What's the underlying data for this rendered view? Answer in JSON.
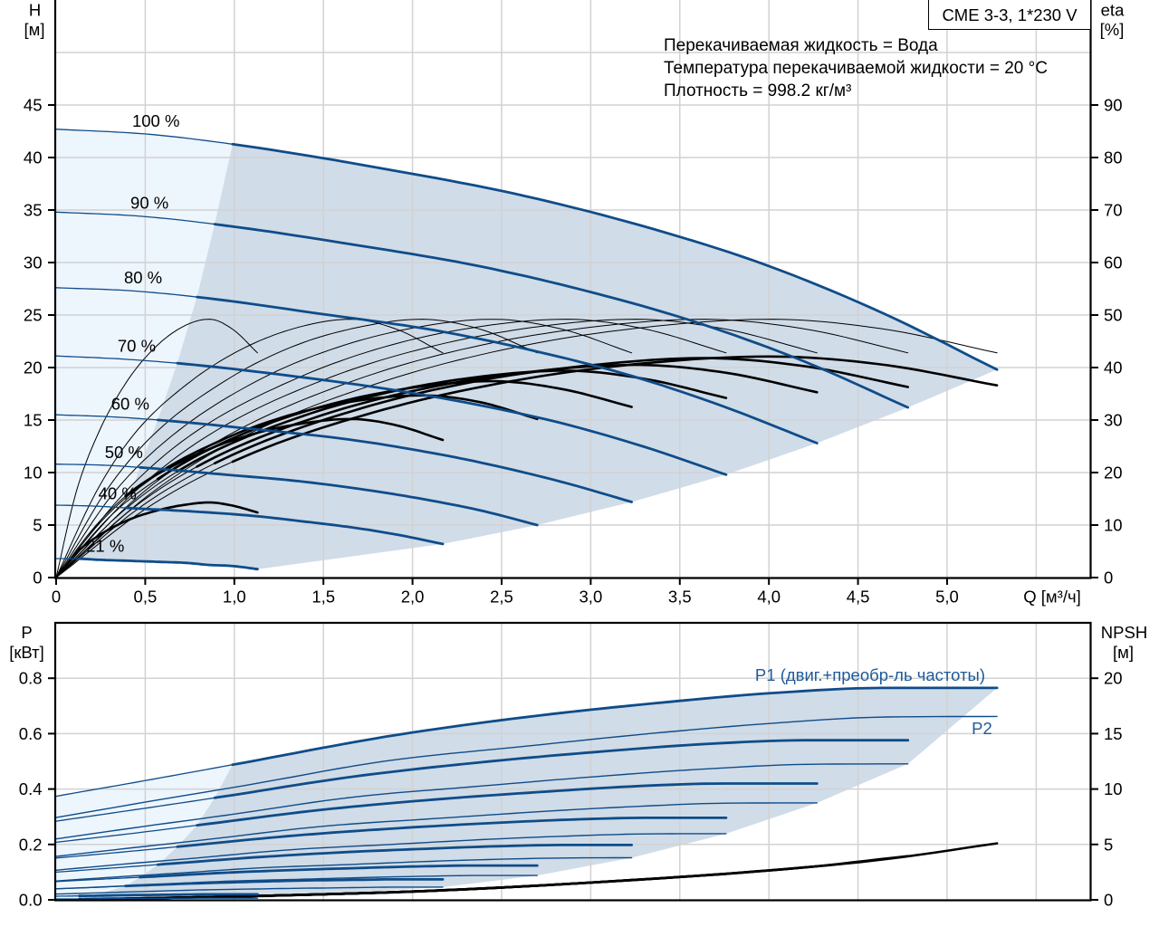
{
  "legend_box": "CME 3-3, 1*230 V",
  "info_lines": [
    "Перекачиваемая жидкость = Вода",
    "Температура перекачиваемой жидкости = 20 °C",
    "Плотность = 998.2 кг/м³"
  ],
  "colors": {
    "curve_blue": "#0f4c89",
    "annotation_blue": "#1f5a99",
    "eta_black": "#000000",
    "operating_range_fill": "#d0dce8",
    "extended_range_fill": "#edf5fd",
    "grid": "#d2d2d2"
  },
  "chart_data": [
    {
      "type": "line",
      "xlabel": "Q [м³/ч]",
      "ylabel": "H",
      "ylabel_unit": "[м]",
      "y2label": "eta",
      "y2label_unit": "[%]",
      "xlim": [
        0,
        5.8
      ],
      "ylim": [
        0,
        55
      ],
      "y2lim": [
        0,
        110
      ],
      "grid": true,
      "x_grid_step": 0.5,
      "y_grid_step": 5,
      "xticks": [
        {
          "value": 0,
          "label": "0"
        },
        {
          "value": 0.5,
          "label": "0,5"
        },
        {
          "value": 1,
          "label": "1,0"
        },
        {
          "value": 1.5,
          "label": "1,5"
        },
        {
          "value": 2,
          "label": "2,0"
        },
        {
          "value": 2.5,
          "label": "2,5"
        },
        {
          "value": 3,
          "label": "3,0"
        },
        {
          "value": 3.5,
          "label": "3,5"
        },
        {
          "value": 4,
          "label": "4,0"
        },
        {
          "value": 4.5,
          "label": "4,5"
        },
        {
          "value": 5,
          "label": "5,0"
        }
      ],
      "yticks": [
        {
          "value": 0,
          "label": "0"
        },
        {
          "value": 5,
          "label": "5"
        },
        {
          "value": 10,
          "label": "10"
        },
        {
          "value": 15,
          "label": "15"
        },
        {
          "value": 20,
          "label": "20"
        },
        {
          "value": 25,
          "label": "25"
        },
        {
          "value": 30,
          "label": "30"
        },
        {
          "value": 35,
          "label": "35"
        },
        {
          "value": 40,
          "label": "40"
        },
        {
          "value": 45,
          "label": "45"
        }
      ],
      "y2ticks": [
        {
          "value": 0,
          "label": "0"
        },
        {
          "value": 10,
          "label": "10"
        },
        {
          "value": 20,
          "label": "20"
        },
        {
          "value": 30,
          "label": "30"
        },
        {
          "value": 40,
          "label": "40"
        },
        {
          "value": 50,
          "label": "50"
        },
        {
          "value": 60,
          "label": "60"
        },
        {
          "value": 70,
          "label": "70"
        },
        {
          "value": 80,
          "label": "80"
        },
        {
          "value": 90,
          "label": "90"
        }
      ],
      "series": [
        {
          "speed_label": "100 %",
          "q_min": 0.99,
          "q": [
            0,
            0.53,
            1.06,
            1.85,
            2.64,
            3.43,
            4.01,
            4.65,
            5.28
          ],
          "h": [
            42.7,
            42.2,
            41.1,
            38.9,
            36.3,
            32.8,
            29.6,
            25.1,
            19.8
          ],
          "eta_pump": [
            0,
            16,
            27,
            37.5,
            44.3,
            48.1,
            49.2,
            47.3,
            42.8
          ],
          "eta_total": [
            0,
            13.7,
            23.1,
            32.1,
            37.9,
            41.2,
            42.1,
            40.5,
            36.6
          ]
        },
        {
          "speed_label": "90 %",
          "q_min": 0.89,
          "q": [
            0,
            0.48,
            0.96,
            1.67,
            2.39,
            3.11,
            3.63,
            4.21,
            4.78
          ],
          "h": [
            34.8,
            34.4,
            33.5,
            31.7,
            29.6,
            26.7,
            24.1,
            20.5,
            16.2
          ],
          "eta_pump": [
            0,
            16,
            27,
            37.5,
            44.3,
            48.1,
            49.2,
            47.3,
            42.8
          ],
          "eta_total": [
            0,
            13.6,
            22.9,
            31.8,
            37.6,
            40.8,
            41.8,
            40.2,
            36.3
          ]
        },
        {
          "speed_label": "80 %",
          "q_min": 0.79,
          "q": [
            0,
            0.43,
            0.85,
            1.49,
            2.14,
            2.78,
            3.25,
            3.76,
            4.27
          ],
          "h": [
            27.6,
            27.3,
            26.6,
            25.1,
            23.5,
            21.2,
            19.1,
            16.2,
            12.8
          ],
          "eta_pump": [
            0,
            16,
            27,
            37.5,
            44.3,
            48.1,
            49.2,
            47.3,
            42.8
          ],
          "eta_total": [
            0,
            13.2,
            22.2,
            30.9,
            36.5,
            39.6,
            40.5,
            39.0,
            35.3
          ]
        },
        {
          "speed_label": "70 %",
          "q_min": 0.68,
          "q": [
            0,
            0.38,
            0.75,
            1.32,
            1.88,
            2.44,
            2.86,
            3.31,
            3.76
          ],
          "h": [
            21.1,
            20.8,
            20.3,
            19.2,
            17.9,
            16.2,
            14.6,
            12.4,
            9.8
          ],
          "eta_pump": [
            0,
            16,
            27,
            37.5,
            44.3,
            48.1,
            49.2,
            47.3,
            42.8
          ],
          "eta_total": [
            0,
            12.8,
            21.6,
            30.0,
            35.4,
            38.5,
            39.4,
            37.8,
            34.2
          ]
        },
        {
          "speed_label": "60 %",
          "q_min": 0.57,
          "q": [
            0,
            0.32,
            0.65,
            1.13,
            1.62,
            2.1,
            2.45,
            2.84,
            3.23
          ],
          "h": [
            15.5,
            15.3,
            14.9,
            14.1,
            13.2,
            11.9,
            10.7,
            9.1,
            7.2
          ],
          "eta_pump": [
            0,
            16,
            27,
            37.5,
            44.3,
            48.1,
            49.2,
            47.3,
            42.8
          ],
          "eta_total": [
            0,
            12.2,
            20.5,
            28.5,
            33.7,
            36.6,
            37.4,
            35.9,
            32.5
          ]
        },
        {
          "speed_label": "50 %",
          "q_min": 0.47,
          "q": [
            0,
            0.27,
            0.54,
            0.95,
            1.35,
            1.76,
            2.05,
            2.38,
            2.7
          ],
          "h": [
            10.8,
            10.7,
            10.4,
            9.8,
            9.2,
            8.3,
            7.5,
            6.4,
            5.0
          ],
          "eta_pump": [
            0,
            16,
            27,
            37.5,
            44.3,
            48.1,
            49.2,
            47.3,
            42.8
          ],
          "eta_total": [
            0,
            11.3,
            19.1,
            26.5,
            31.3,
            34.0,
            34.7,
            33.4,
            30.2
          ]
        },
        {
          "speed_label": "40 %",
          "q_min": 0.39,
          "q": [
            0,
            0.22,
            0.43,
            0.76,
            1.09,
            1.41,
            1.65,
            1.91,
            2.17
          ],
          "h": [
            6.9,
            6.8,
            6.6,
            6.3,
            5.9,
            5.3,
            4.8,
            4.1,
            3.2
          ],
          "eta_pump": [
            0,
            16,
            27,
            37.5,
            44.3,
            48.1,
            49.2,
            47.3,
            42.8
          ],
          "eta_total": [
            0,
            9.8,
            16.6,
            23.0,
            27.2,
            29.5,
            30.2,
            29.0,
            26.2
          ]
        },
        {
          "speed_label": "21 %",
          "q_min": 0.13,
          "q": [
            0,
            0.11,
            0.23,
            0.4,
            0.57,
            0.73,
            0.86,
            0.99,
            1.13
          ],
          "h": [
            1.8,
            1.8,
            1.7,
            1.6,
            1.5,
            1.4,
            1.2,
            1.1,
            0.8
          ],
          "eta_pump": [
            0,
            16,
            27,
            37.5,
            44.3,
            48.1,
            49.2,
            47.3,
            42.8
          ],
          "eta_total": [
            0,
            4.6,
            7.8,
            10.9,
            12.8,
            13.9,
            14.3,
            13.7,
            12.4
          ]
        }
      ]
    },
    {
      "type": "line",
      "ylabel": "P",
      "ylabel_unit": "[кВт]",
      "y2label": "NPSH",
      "y2label_unit": "[м]",
      "xlim": [
        0,
        5.8
      ],
      "ylim": [
        0,
        1.0
      ],
      "y2lim": [
        0,
        25
      ],
      "grid": true,
      "x_grid_step": 0.5,
      "y_grid_step": 0.2,
      "yticks": [
        {
          "value": 0,
          "label": "0.0"
        },
        {
          "value": 0.2,
          "label": "0.2"
        },
        {
          "value": 0.4,
          "label": "0.4"
        },
        {
          "value": 0.6,
          "label": "0.6"
        },
        {
          "value": 0.8,
          "label": "0.8"
        }
      ],
      "y2ticks": [
        {
          "value": 0,
          "label": "0"
        },
        {
          "value": 5,
          "label": "5"
        },
        {
          "value": 10,
          "label": "10"
        },
        {
          "value": 15,
          "label": "15"
        },
        {
          "value": 20,
          "label": "20"
        }
      ],
      "annotations": {
        "p1": "P1 (двиг.+преобр-ль частоты)",
        "p2": "P2"
      },
      "series": [
        {
          "q_min": 0.99,
          "q": [
            0,
            0.53,
            1.06,
            1.85,
            2.64,
            3.43,
            4.01,
            4.65,
            5.28
          ],
          "p1": [
            0.374,
            0.434,
            0.496,
            0.589,
            0.66,
            0.714,
            0.746,
            0.765,
            0.765
          ],
          "p2": [
            0.297,
            0.356,
            0.413,
            0.501,
            0.555,
            0.606,
            0.637,
            0.66,
            0.662
          ],
          "npsh": [
            0.05,
            0.16,
            0.32,
            0.67,
            1.23,
            1.98,
            2.66,
            3.66,
            5.1
          ]
        },
        {
          "q_min": 0.89,
          "q": [
            0,
            0.48,
            0.96,
            1.67,
            2.39,
            3.11,
            3.63,
            4.21,
            4.78
          ],
          "p1": [
            0.284,
            0.329,
            0.375,
            0.445,
            0.497,
            0.538,
            0.562,
            0.576,
            0.576
          ],
          "p2": [
            0.22,
            0.264,
            0.306,
            0.371,
            0.411,
            0.449,
            0.472,
            0.489,
            0.491
          ],
          "npsh": [
            0.05,
            0.15,
            0.29,
            0.58,
            1.02,
            1.67,
            2.21,
            2.94,
            3.95
          ]
        },
        {
          "q_min": 0.79,
          "q": [
            0,
            0.43,
            0.85,
            1.49,
            2.14,
            2.78,
            3.25,
            3.76,
            4.27
          ],
          "p1": [
            0.208,
            0.24,
            0.274,
            0.325,
            0.363,
            0.392,
            0.41,
            0.42,
            0.42
          ],
          "p2": [
            0.157,
            0.188,
            0.218,
            0.265,
            0.294,
            0.321,
            0.337,
            0.349,
            0.35
          ],
          "npsh": [
            0.05,
            0.13,
            0.25,
            0.5,
            0.84,
            1.36,
            1.81,
            2.36,
            3.02
          ]
        },
        {
          "q_min": 0.68,
          "q": [
            0,
            0.38,
            0.75,
            1.32,
            1.88,
            2.44,
            2.86,
            3.31,
            3.76
          ],
          "p1": [
            0.151,
            0.173,
            0.196,
            0.231,
            0.257,
            0.277,
            0.289,
            0.296,
            0.296
          ],
          "p2": [
            0.107,
            0.129,
            0.149,
            0.181,
            0.2,
            0.219,
            0.23,
            0.238,
            0.239
          ],
          "npsh": [
            0.05,
            0.12,
            0.22,
            0.43,
            0.68,
            1.06,
            1.43,
            1.86,
            2.34
          ]
        },
        {
          "q_min": 0.57,
          "q": [
            0,
            0.32,
            0.65,
            1.13,
            1.62,
            2.1,
            2.45,
            2.84,
            3.23
          ],
          "p1": [
            0.1,
            0.115,
            0.131,
            0.154,
            0.172,
            0.185,
            0.193,
            0.198,
            0.198
          ],
          "p2": [
            0.068,
            0.082,
            0.095,
            0.115,
            0.127,
            0.139,
            0.146,
            0.151,
            0.152
          ],
          "npsh": [
            0.05,
            0.11,
            0.19,
            0.35,
            0.56,
            0.81,
            1.06,
            1.41,
            1.78
          ]
        },
        {
          "q_min": 0.47,
          "q": [
            0,
            0.27,
            0.54,
            0.95,
            1.35,
            1.76,
            2.05,
            2.38,
            2.7
          ],
          "p1": [
            0.066,
            0.075,
            0.084,
            0.098,
            0.108,
            0.116,
            0.121,
            0.124,
            0.124
          ],
          "p2": [
            0.04,
            0.047,
            0.055,
            0.067,
            0.074,
            0.081,
            0.085,
            0.088,
            0.088
          ],
          "npsh": [
            0.05,
            0.1,
            0.16,
            0.28,
            0.44,
            0.62,
            0.78,
            1.01,
            1.28
          ]
        },
        {
          "q_min": 0.39,
          "q": [
            0,
            0.22,
            0.43,
            0.76,
            1.09,
            1.41,
            1.65,
            1.91,
            2.17
          ],
          "p1": [
            0.04,
            0.045,
            0.051,
            0.059,
            0.065,
            0.07,
            0.072,
            0.074,
            0.074
          ],
          "p2": [
            0.021,
            0.025,
            0.029,
            0.035,
            0.039,
            0.042,
            0.044,
            0.046,
            0.046
          ],
          "npsh": [
            0.05,
            0.09,
            0.13,
            0.22,
            0.34,
            0.46,
            0.57,
            0.68,
            0.85
          ]
        },
        {
          "q_min": 0.13,
          "q": [
            0,
            0.11,
            0.23,
            0.4,
            0.57,
            0.73,
            0.86,
            0.99,
            1.13
          ],
          "p1": [
            0.013,
            0.014,
            0.015,
            0.017,
            0.018,
            0.019,
            0.02,
            0.02,
            0.02
          ],
          "p2": [
            0.003,
            0.003,
            0.004,
            0.005,
            0.005,
            0.006,
            0.006,
            0.006,
            0.006
          ],
          "npsh": [
            0.05,
            0.07,
            0.09,
            0.12,
            0.17,
            0.21,
            0.26,
            0.3,
            0.36
          ]
        }
      ]
    }
  ]
}
